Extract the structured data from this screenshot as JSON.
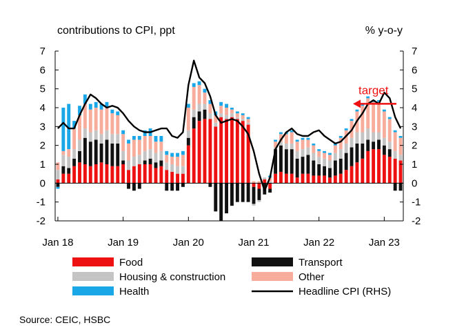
{
  "chart_data": {
    "type": "bar",
    "subtype": "stacked bar with line overlay",
    "left_header": "contributions  to CPI, ppt",
    "right_header": "% y-o-y",
    "x_tick_labels": [
      "Jan 18",
      "Jan 19",
      "Jan 20",
      "Jan 21",
      "Jan 22",
      "Jan 23"
    ],
    "x_tick_month_index": [
      0,
      12,
      24,
      36,
      48,
      60
    ],
    "y_left_ticks": [
      "7",
      "6",
      "5",
      "4",
      "3",
      "2",
      "1",
      "0",
      "-1",
      "-2"
    ],
    "y_right_ticks": [
      "7",
      "6",
      "5",
      "4",
      "3",
      "2",
      "1",
      "0",
      "-1",
      "-2"
    ],
    "ylim": [
      -2,
      7
    ],
    "months": 64,
    "series": [
      {
        "name": "Food",
        "color": "#ee1111",
        "values": [
          0.2,
          0.5,
          0.5,
          0.9,
          1.1,
          1.0,
          0.9,
          1.0,
          1.1,
          1.0,
          0.9,
          0.9,
          1.0,
          0.7,
          0.9,
          1.0,
          1.0,
          1.0,
          0.8,
          0.9,
          0.7,
          0.6,
          0.5,
          0.5,
          2.0,
          2.9,
          3.3,
          3.4,
          3.4,
          3.0,
          3.5,
          3.4,
          3.5,
          3.4,
          3.3,
          3.1,
          -0.2,
          -0.3,
          0.2,
          -0.3,
          0.5,
          0.6,
          0.5,
          0.5,
          0.3,
          0.5,
          0.5,
          0.4,
          0.4,
          0.4,
          0.3,
          0.4,
          0.5,
          0.7,
          0.9,
          1.1,
          1.3,
          1.7,
          1.8,
          1.8,
          1.5,
          1.4,
          1.3,
          1.2
        ]
      },
      {
        "name": "Transport",
        "color": "#111111",
        "values": [
          -0.2,
          0.4,
          0.3,
          0.4,
          0.6,
          1.4,
          1.3,
          1.3,
          1.0,
          1.3,
          1.2,
          1.2,
          0.2,
          -0.3,
          -0.4,
          -0.3,
          0.2,
          0.3,
          0.3,
          0.3,
          -0.4,
          -0.4,
          -0.4,
          -0.2,
          0.4,
          0.6,
          0.5,
          0.5,
          -0.2,
          -1.5,
          -2.0,
          -1.6,
          -1.2,
          -1.0,
          -1.0,
          -1.0,
          -0.9,
          -0.6,
          -0.6,
          -0.2,
          1.3,
          1.4,
          1.3,
          1.3,
          1.0,
          0.9,
          1.0,
          0.8,
          0.6,
          0.5,
          0.5,
          0.8,
          0.8,
          0.9,
          1.0,
          1.0,
          0.8,
          0.6,
          0.4,
          0.5,
          0.5,
          0.4,
          -0.4,
          -0.4
        ]
      },
      {
        "name": "Housing & construction",
        "color": "#c4c4c4",
        "values": [
          0.5,
          0.6,
          0.6,
          0.5,
          0.6,
          0.5,
          0.5,
          0.5,
          0.5,
          0.5,
          0.5,
          0.5,
          0.5,
          0.5,
          0.5,
          0.5,
          0.5,
          0.5,
          0.5,
          0.5,
          0.4,
          0.4,
          0.4,
          0.4,
          0.4,
          0.4,
          0.4,
          0.3,
          0.3,
          0.2,
          0.2,
          0.2,
          0.2,
          0.1,
          0.1,
          0.1,
          -0.1,
          -0.1,
          0.1,
          0.1,
          0.1,
          0.2,
          0.3,
          0.3,
          0.4,
          0.4,
          0.4,
          0.4,
          0.4,
          0.4,
          0.4,
          0.4,
          0.5,
          0.5,
          0.5,
          0.6,
          0.6,
          0.6,
          0.5,
          0.4,
          0.4,
          0.4,
          0.4,
          0.3
        ]
      },
      {
        "name": "Other",
        "color": "#f8ad9c",
        "values": [
          0.4,
          0.2,
          0.4,
          1.1,
          1.3,
          1.3,
          1.2,
          1.2,
          1.3,
          1.2,
          1.1,
          1.0,
          0.9,
          0.9,
          0.9,
          0.8,
          0.8,
          0.7,
          0.6,
          0.5,
          0.4,
          0.4,
          0.5,
          0.6,
          1.2,
          1.2,
          1.0,
          0.6,
          0.5,
          0.4,
          0.4,
          0.4,
          0.2,
          0.2,
          0.2,
          0.2,
          0.1,
          0.1,
          0.0,
          0.2,
          0.3,
          0.4,
          0.5,
          0.6,
          0.5,
          0.5,
          0.4,
          0.4,
          0.3,
          0.3,
          0.3,
          0.4,
          0.6,
          0.7,
          0.9,
          1.1,
          1.4,
          1.6,
          1.6,
          1.6,
          1.4,
          1.2,
          1.0,
          0.9
        ]
      },
      {
        "name": "Health",
        "color": "#1aa7e8",
        "values": [
          -0.1,
          2.3,
          2.4,
          0.4,
          0.5,
          0.5,
          0.3,
          0.3,
          0.3,
          0.3,
          0.2,
          0.2,
          0.2,
          0.2,
          0.2,
          0.2,
          0.3,
          0.4,
          0.3,
          0.3,
          0.2,
          0.2,
          0.2,
          0.2,
          0.2,
          0.2,
          0.2,
          0.2,
          0.2,
          0.2,
          0.2,
          0.2,
          0.1,
          0.1,
          0.1,
          0.1,
          0.0,
          0.0,
          0.0,
          0.1,
          0.1,
          0.1,
          0.1,
          0.1,
          0.1,
          0.1,
          0.1,
          0.1,
          0.1,
          0.1,
          0.1,
          0.1,
          0.1,
          0.1,
          0.1,
          0.1,
          0.1,
          0.1,
          0.1,
          0.1,
          0.1,
          0.1,
          0.1,
          0.1
        ]
      },
      {
        "name": "Headline CPI (RHS)",
        "color": "#000000",
        "type": "line",
        "values": [
          2.9,
          3.2,
          2.9,
          2.9,
          3.6,
          4.2,
          4.7,
          4.5,
          4.2,
          4.0,
          4.1,
          4.0,
          3.7,
          3.3,
          3.0,
          2.8,
          2.7,
          2.7,
          2.8,
          2.9,
          2.9,
          2.5,
          2.4,
          2.7,
          5.2,
          6.5,
          5.6,
          5.3,
          4.6,
          3.6,
          3.2,
          3.3,
          3.4,
          3.3,
          3.0,
          2.6,
          1.7,
          0.5,
          -0.4,
          0.3,
          1.8,
          2.3,
          2.7,
          2.9,
          2.6,
          2.5,
          2.5,
          2.7,
          2.8,
          2.5,
          2.3,
          2.1,
          2.2,
          2.5,
          2.8,
          3.3,
          3.7,
          4.2,
          4.4,
          4.2,
          4.8,
          4.5,
          3.5,
          2.9
        ]
      }
    ],
    "annotation": {
      "text": "target",
      "value": 4.5,
      "color": "#ee1111"
    },
    "source": "Source: CEIC, HSBC"
  }
}
